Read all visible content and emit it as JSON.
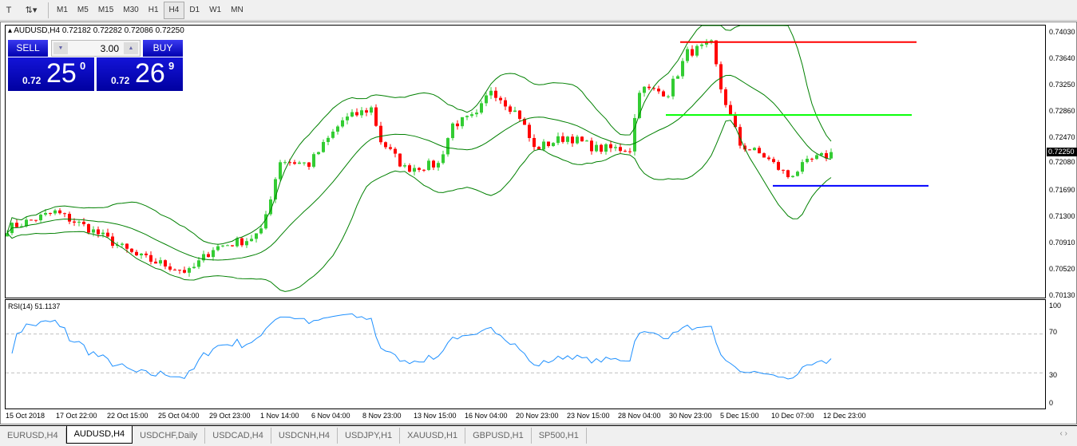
{
  "toolbar": {
    "timeframes": [
      "M1",
      "M5",
      "M15",
      "M30",
      "H1",
      "H4",
      "D1",
      "W1",
      "MN"
    ],
    "active": "H4"
  },
  "chart": {
    "title": "AUDUSD,H4",
    "ohlc": "0.72182 0.72282 0.72086 0.72250",
    "trade": {
      "sell_label": "SELL",
      "buy_label": "BUY",
      "lot": "3.00",
      "sell_prefix": "0.72",
      "sell_big": "25",
      "sell_sup": "0",
      "buy_prefix": "0.72",
      "buy_big": "26",
      "buy_sup": "9"
    },
    "price_axis": [
      "0.74030",
      "0.73640",
      "0.73250",
      "0.72860",
      "0.72470",
      "0.72080",
      "0.71690",
      "0.71300",
      "0.70910",
      "0.70520",
      "0.70130"
    ],
    "current_price": "0.72250",
    "time_axis": [
      "15 Oct 2018",
      "17 Oct 22:00",
      "22 Oct 15:00",
      "25 Oct 04:00",
      "29 Oct 23:00",
      "1 Nov 14:00",
      "6 Nov 04:00",
      "8 Nov 23:00",
      "13 Nov 15:00",
      "16 Nov 04:00",
      "20 Nov 23:00",
      "23 Nov 15:00",
      "28 Nov 04:00",
      "30 Nov 23:00",
      "5 Dec 15:00",
      "10 Dec 07:00",
      "12 Dec 23:00"
    ],
    "price_anchors": [
      [
        0,
        0.7112
      ],
      [
        10,
        0.7136
      ],
      [
        17,
        0.7112
      ],
      [
        27,
        0.7071
      ],
      [
        38,
        0.7047
      ],
      [
        43,
        0.7083
      ],
      [
        50,
        0.7095
      ],
      [
        53,
        0.7106
      ],
      [
        57,
        0.7213
      ],
      [
        63,
        0.7207
      ],
      [
        70,
        0.7272
      ],
      [
        76,
        0.729
      ],
      [
        78,
        0.7242
      ],
      [
        83,
        0.7201
      ],
      [
        90,
        0.7207
      ],
      [
        93,
        0.7266
      ],
      [
        98,
        0.7278
      ],
      [
        101,
        0.7319
      ],
      [
        107,
        0.7278
      ],
      [
        110,
        0.723
      ],
      [
        117,
        0.7248
      ],
      [
        123,
        0.723
      ],
      [
        130,
        0.723
      ],
      [
        132,
        0.7319
      ],
      [
        138,
        0.7313
      ],
      [
        142,
        0.7372
      ],
      [
        147,
        0.7384
      ],
      [
        149,
        0.7319
      ],
      [
        153,
        0.7236
      ],
      [
        158,
        0.7219
      ],
      [
        163,
        0.7189
      ],
      [
        168,
        0.7213
      ],
      [
        172,
        0.7222
      ]
    ],
    "lines": [
      {
        "price": 0.7388,
        "color": "#ff0000"
      },
      {
        "price": 0.728,
        "color": "#00ff00"
      },
      {
        "price": 0.7175,
        "color": "#0000ff"
      }
    ],
    "colors": {
      "bull": "#33cc33",
      "bear": "#ff0000",
      "bands": "#008000",
      "rsi": "#1e90ff"
    }
  },
  "rsi": {
    "title": "RSI(14) 51.1137",
    "axis": [
      "100",
      "70",
      "30",
      "0"
    ]
  },
  "tabs": [
    "EURUSD,H4",
    "AUDUSD,H4",
    "USDCHF,Daily",
    "USDCAD,H4",
    "USDCNH,H4",
    "USDJPY,H1",
    "XAUUSD,H1",
    "GBPUSD,H1",
    "SP500,H1"
  ],
  "active_tab": "AUDUSD,H4"
}
